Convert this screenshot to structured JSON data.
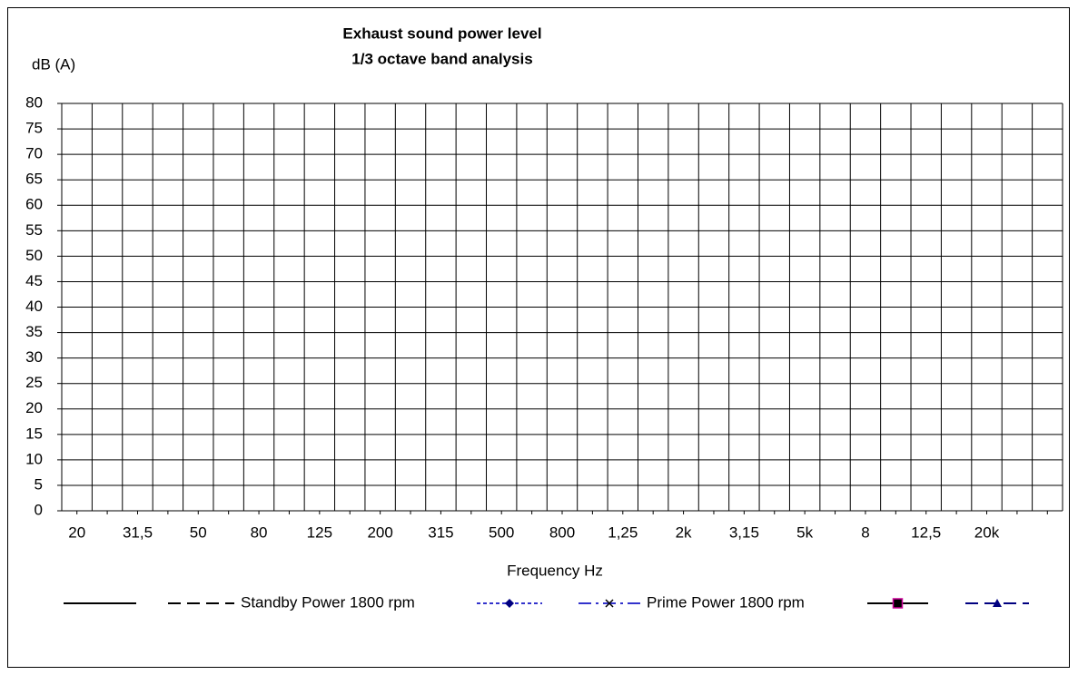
{
  "chart_data": {
    "type": "line",
    "title": [
      "Exhaust sound power level",
      "1/3 octave band analysis"
    ],
    "y_label": "dB (A)",
    "x_label": "Frequency Hz",
    "categories": [
      "20",
      null,
      "31,5",
      null,
      "50",
      null,
      "80",
      null,
      "125",
      null,
      "200",
      null,
      "315",
      null,
      "500",
      null,
      "800",
      null,
      "1,25",
      null,
      "2k",
      null,
      "3,15",
      null,
      "5k",
      null,
      "8",
      null,
      "12,5",
      null,
      "20k",
      null,
      null
    ],
    "ylim": [
      0,
      80
    ],
    "yticks": [
      0,
      5,
      10,
      15,
      20,
      25,
      30,
      35,
      40,
      45,
      50,
      55,
      60,
      65,
      70,
      75,
      80
    ],
    "grid": true,
    "legend": "bottom",
    "series": [
      {
        "color": "#000000",
        "dash": "solid",
        "values": [
          null,
          null,
          null,
          null,
          null,
          null,
          null,
          null,
          null,
          null,
          null,
          null,
          null,
          null,
          null,
          null,
          null,
          null,
          null,
          null,
          null,
          null,
          null,
          null,
          null,
          null,
          null,
          null,
          null,
          null,
          null,
          null,
          null
        ]
      },
      {
        "name": "Standby Power 1800 rpm",
        "color": "#000000",
        "dash": "dash",
        "values": [
          null,
          null,
          null,
          null,
          null,
          null,
          null,
          null,
          null,
          null,
          null,
          null,
          null,
          null,
          null,
          null,
          null,
          null,
          null,
          null,
          null,
          null,
          null,
          null,
          null,
          null,
          null,
          null,
          null,
          null,
          null,
          null,
          null
        ]
      },
      {
        "color": "#3333cc",
        "dash": "dot",
        "marker": "diamond",
        "marker_color": "#000080",
        "values": [
          null,
          null,
          null,
          null,
          null,
          null,
          null,
          null,
          null,
          null,
          null,
          null,
          null,
          null,
          null,
          null,
          null,
          null,
          null,
          null,
          null,
          null,
          null,
          null,
          null,
          null,
          null,
          null,
          null,
          null,
          null,
          null,
          null
        ]
      },
      {
        "name": "Prime Power 1800 rpm",
        "color": "#3333cc",
        "dash": "dashdot",
        "marker": "x",
        "marker_color": "#000000",
        "values": [
          null,
          null,
          null,
          null,
          null,
          null,
          null,
          null,
          null,
          null,
          null,
          null,
          null,
          null,
          null,
          null,
          null,
          null,
          null,
          null,
          null,
          null,
          null,
          null,
          null,
          null,
          null,
          null,
          null,
          null,
          null,
          null,
          null
        ]
      },
      {
        "color": "#000000",
        "dash": "solid",
        "marker": "square",
        "marker_color": "#cc0099",
        "values": [
          null,
          null,
          null,
          null,
          null,
          null,
          null,
          null,
          null,
          null,
          null,
          null,
          null,
          null,
          null,
          null,
          null,
          null,
          null,
          null,
          null,
          null,
          null,
          null,
          null,
          null,
          null,
          null,
          null,
          null,
          null,
          null,
          null
        ]
      },
      {
        "color": "#000080",
        "dash": "dash",
        "marker": "triangle",
        "marker_color": "#000080",
        "values": [
          null,
          null,
          null,
          null,
          null,
          null,
          null,
          null,
          null,
          null,
          null,
          null,
          null,
          null,
          null,
          null,
          null,
          null,
          null,
          null,
          null,
          null,
          null,
          null,
          null,
          null,
          null,
          null,
          null,
          null,
          null,
          null,
          null
        ]
      }
    ]
  }
}
